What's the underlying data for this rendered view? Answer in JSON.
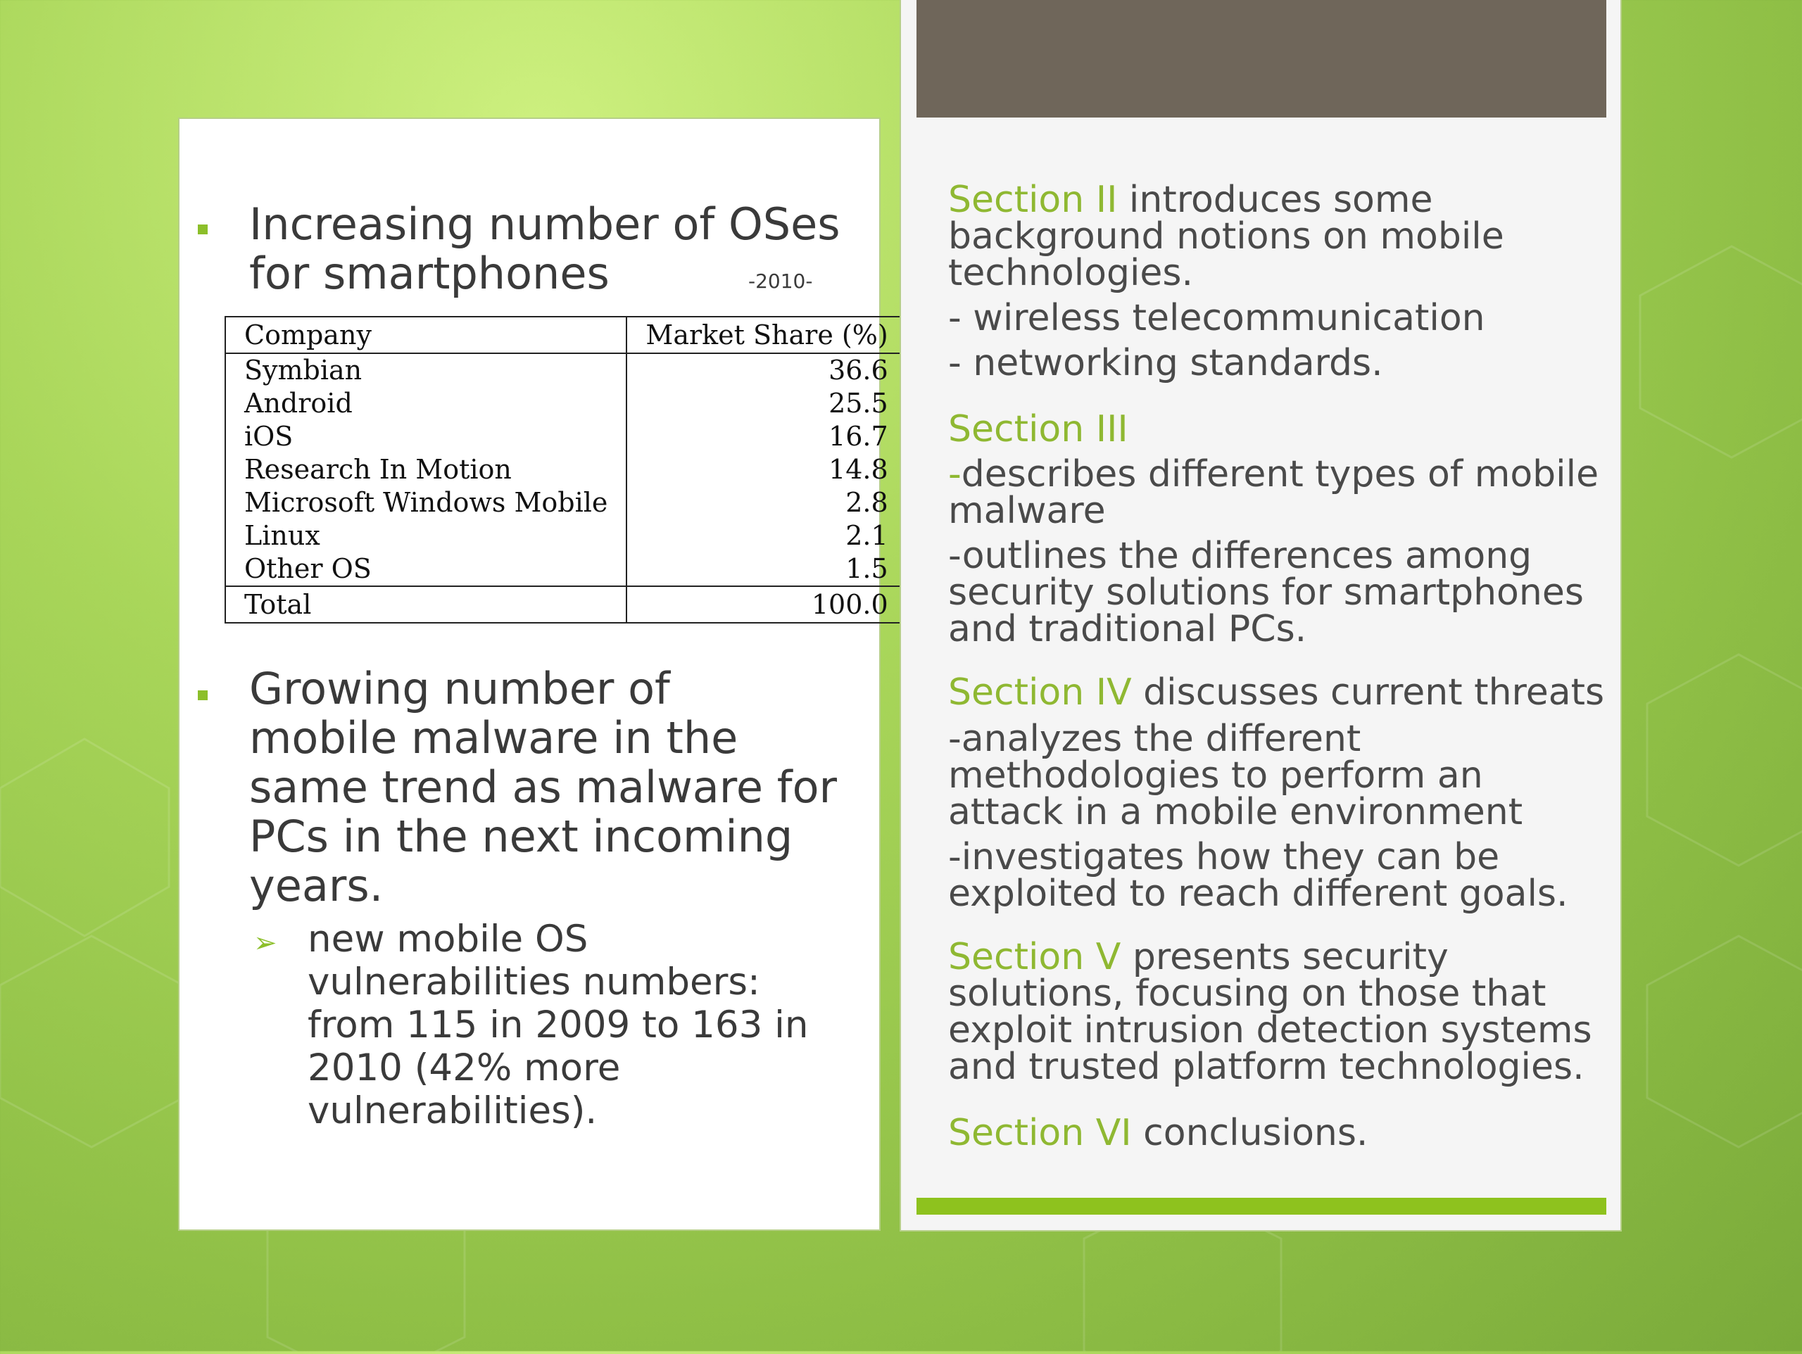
{
  "left": {
    "bullet1": {
      "line1": "Increasing number of OSes",
      "line2": "for smartphones",
      "year": "-2010-"
    },
    "table": {
      "headers": [
        "Company",
        "Market Share (%)"
      ],
      "rows": [
        [
          "Symbian",
          "36.6"
        ],
        [
          "Android",
          "25.5"
        ],
        [
          "iOS",
          "16.7"
        ],
        [
          "Research In Motion",
          "14.8"
        ],
        [
          "Microsoft Windows Mobile",
          "2.8"
        ],
        [
          "Linux",
          "2.1"
        ],
        [
          "Other OS",
          "1.5"
        ]
      ],
      "total": [
        "Total",
        "100.0"
      ]
    },
    "bullet2": {
      "lines": [
        "Growing number of",
        "mobile malware in the",
        "same trend as malware for",
        "PCs in the next incoming",
        "years."
      ]
    },
    "sub": {
      "arrow": "➢",
      "lines": [
        "new mobile OS",
        "vulnerabilities numbers:",
        "from 115 in 2009 to 163 in",
        "2010 (42% more",
        "vulnerabilities)."
      ]
    }
  },
  "right": {
    "s2": {
      "label": "Section II",
      "l1": " introduces some",
      "l2": "background notions on mobile",
      "l3": "technologies.",
      "b1": "- wireless telecommunication",
      "b2": "- networking standards."
    },
    "s3": {
      "label": "Section III",
      "d1_dash": "-",
      "d1_l1": "describes different types of mobile",
      "d1_l2": "malware",
      "d2_l1": "-outlines the differences among",
      "d2_l2": "security solutions for smartphones",
      "d2_l3": "and traditional PCs."
    },
    "s4": {
      "label": "Section IV",
      "l1": " discusses current threats",
      "a_l1": "-analyzes the different",
      "a_l2": "methodologies to perform an",
      "a_l3": "attack in a mobile environment",
      "b_l1": "-investigates how they can be",
      "b_l2": "exploited to reach different goals."
    },
    "s5": {
      "label": "Section V",
      "l1": " presents security",
      "l2": "solutions, focusing on those that",
      "l3": "exploit intrusion detection systems",
      "l4": "and trusted platform technologies."
    },
    "s6": {
      "label": "Section VI",
      "l1": " conclusions."
    }
  },
  "colors": {
    "accent_green": "#8fb832",
    "header_block": "#6f665a",
    "footer_bar": "#8ec21e"
  }
}
